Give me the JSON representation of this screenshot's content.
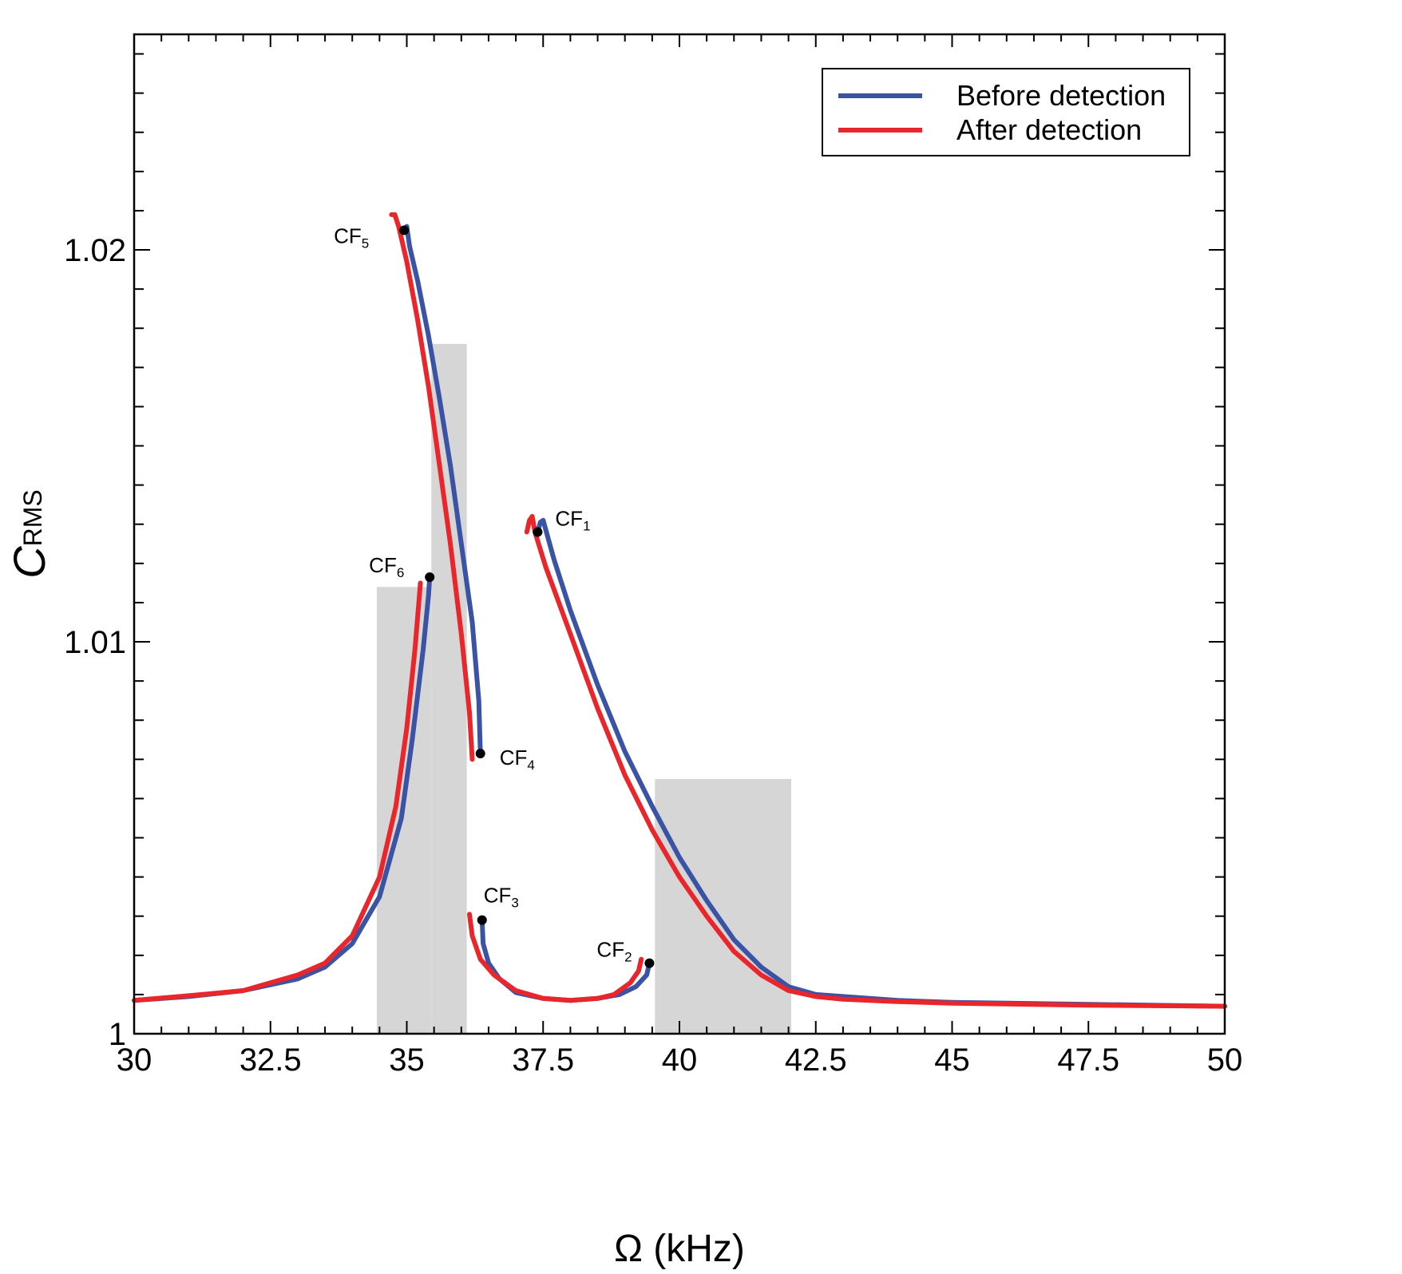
{
  "chart_data": {
    "type": "line",
    "title": "",
    "xlabel": "Ω (kHz)",
    "ylabel_main": "C",
    "ylabel_sub": "RMS",
    "xlim": [
      30,
      50
    ],
    "ylim": [
      1.0,
      1.0255
    ],
    "xticks": [
      30,
      32.5,
      35,
      37.5,
      40,
      42.5,
      45,
      47.5,
      50
    ],
    "xtick_labels": [
      "30",
      "32.5",
      "35",
      "37.5",
      "40",
      "42.5",
      "45",
      "47.5",
      "50"
    ],
    "yticks": [
      1.0,
      1.01,
      1.02
    ],
    "ytick_labels": [
      "1",
      "1.01",
      "1.02"
    ],
    "legend": {
      "placement": "top-right",
      "entries": [
        {
          "label": "Before detection",
          "color": "#3a53a4"
        },
        {
          "label": "After detection",
          "color": "#e8262b"
        }
      ]
    },
    "shaded_regions": [
      {
        "x0": 34.45,
        "x1": 35.45,
        "ytop": 1.0114,
        "color": "#d6d6d6"
      },
      {
        "x0": 35.45,
        "x1": 36.1,
        "ytop": 1.0176,
        "color": "#d6d6d6"
      },
      {
        "x0": 39.55,
        "x1": 42.05,
        "ytop": 1.0065,
        "color": "#d6d6d6"
      }
    ],
    "series": [
      {
        "name": "Before detection",
        "color": "#3a53a4",
        "segments": [
          [
            [
              30,
              1.00085
            ],
            [
              31,
              1.00095
            ],
            [
              32,
              1.0011
            ],
            [
              33,
              1.0014
            ],
            [
              33.5,
              1.0017
            ],
            [
              34,
              1.0023
            ],
            [
              34.5,
              1.0035
            ],
            [
              34.9,
              1.0055
            ],
            [
              35.1,
              1.0075
            ],
            [
              35.3,
              1.0098
            ],
            [
              35.4,
              1.0112
            ],
            [
              35.42,
              1.01165
            ]
          ],
          [
            [
              36.35,
              1.00715
            ],
            [
              36.32,
              1.0085
            ],
            [
              36.2,
              1.0105
            ],
            [
              36.0,
              1.0125
            ],
            [
              35.8,
              1.0145
            ],
            [
              35.6,
              1.0162
            ],
            [
              35.4,
              1.0178
            ],
            [
              35.2,
              1.0192
            ],
            [
              35.05,
              1.0201
            ],
            [
              35.0,
              1.0206
            ],
            [
              34.95,
              1.0205
            ]
          ],
          [
            [
              36.38,
              1.0029
            ],
            [
              36.4,
              1.0023
            ],
            [
              36.5,
              1.0018
            ],
            [
              36.7,
              1.0014
            ],
            [
              37,
              1.00105
            ],
            [
              37.5,
              1.0009
            ],
            [
              38,
              1.00085
            ],
            [
              38.5,
              1.0009
            ],
            [
              38.9,
              1.001
            ],
            [
              39.2,
              1.0012
            ],
            [
              39.4,
              1.0015
            ],
            [
              39.45,
              1.0018
            ]
          ],
          [
            [
              37.4,
              1.0128
            ],
            [
              37.45,
              1.01305
            ],
            [
              37.5,
              1.0131
            ],
            [
              37.7,
              1.0121
            ],
            [
              38,
              1.0108
            ],
            [
              38.5,
              1.0089
            ],
            [
              39,
              1.0072
            ],
            [
              39.5,
              1.0058
            ],
            [
              40,
              1.0045
            ],
            [
              40.5,
              1.0034
            ],
            [
              41,
              1.0024
            ],
            [
              41.5,
              1.0017
            ],
            [
              42,
              1.0012
            ],
            [
              42.5,
              1.001
            ],
            [
              43,
              1.00095
            ],
            [
              44,
              1.00085
            ],
            [
              45,
              1.0008
            ],
            [
              47.5,
              1.00075
            ],
            [
              50,
              1.0007
            ]
          ]
        ]
      },
      {
        "name": "After detection",
        "color": "#e8262b",
        "segments": [
          [
            [
              30,
              1.00085
            ],
            [
              31,
              1.00097
            ],
            [
              32,
              1.0011
            ],
            [
              33,
              1.0015
            ],
            [
              33.5,
              1.0018
            ],
            [
              34,
              1.0025
            ],
            [
              34.5,
              1.004
            ],
            [
              34.8,
              1.0058
            ],
            [
              35,
              1.0078
            ],
            [
              35.15,
              1.0098
            ],
            [
              35.25,
              1.0115
            ]
          ],
          [
            [
              36.2,
              1.007
            ],
            [
              36.15,
              1.0082
            ],
            [
              36.0,
              1.0102
            ],
            [
              35.8,
              1.0125
            ],
            [
              35.6,
              1.0145
            ],
            [
              35.4,
              1.0165
            ],
            [
              35.2,
              1.0182
            ],
            [
              35.0,
              1.0197
            ],
            [
              34.85,
              1.0206
            ],
            [
              34.78,
              1.0209
            ],
            [
              34.72,
              1.0209
            ]
          ],
          [
            [
              36.15,
              1.00305
            ],
            [
              36.2,
              1.0025
            ],
            [
              36.35,
              1.0019
            ],
            [
              36.6,
              1.0015
            ],
            [
              37,
              1.0011
            ],
            [
              37.5,
              1.0009
            ],
            [
              38,
              1.00085
            ],
            [
              38.5,
              1.0009
            ],
            [
              38.8,
              1.001
            ],
            [
              39.1,
              1.0013
            ],
            [
              39.25,
              1.0016
            ],
            [
              39.3,
              1.0019
            ]
          ],
          [
            [
              37.2,
              1.0128
            ],
            [
              37.25,
              1.0131
            ],
            [
              37.3,
              1.0132
            ],
            [
              37.35,
              1.0128
            ],
            [
              37.55,
              1.0119
            ],
            [
              38,
              1.0102
            ],
            [
              38.5,
              1.0083
            ],
            [
              39,
              1.0066
            ],
            [
              39.5,
              1.0052
            ],
            [
              40,
              1.004
            ],
            [
              40.5,
              1.003
            ],
            [
              41,
              1.0021
            ],
            [
              41.5,
              1.0015
            ],
            [
              42,
              1.0011
            ],
            [
              42.5,
              1.00095
            ],
            [
              43,
              1.00088
            ],
            [
              44,
              1.00082
            ],
            [
              45,
              1.00078
            ],
            [
              47.5,
              1.00073
            ],
            [
              50,
              1.0007
            ]
          ]
        ]
      }
    ],
    "annotations": [
      {
        "id": "cf1",
        "text": "CF",
        "sub": "1",
        "x": 37.4,
        "y": 1.0128,
        "label_dx": 22,
        "label_dy": -8
      },
      {
        "id": "cf2",
        "text": "CF",
        "sub": "2",
        "x": 39.45,
        "y": 1.0018,
        "label_dx": -66,
        "label_dy": -8
      },
      {
        "id": "cf3",
        "text": "CF",
        "sub": "3",
        "x": 36.38,
        "y": 1.0029,
        "label_dx": 2,
        "label_dy": -22
      },
      {
        "id": "cf4",
        "text": "CF",
        "sub": "4",
        "x": 36.35,
        "y": 1.00715,
        "label_dx": 24,
        "label_dy": 14
      },
      {
        "id": "cf5",
        "text": "CF",
        "sub": "5",
        "x": 34.95,
        "y": 1.0205,
        "label_dx": -88,
        "label_dy": 16
      },
      {
        "id": "cf6",
        "text": "CF",
        "sub": "6",
        "x": 35.42,
        "y": 1.01165,
        "label_dx": -76,
        "label_dy": -6
      }
    ]
  }
}
